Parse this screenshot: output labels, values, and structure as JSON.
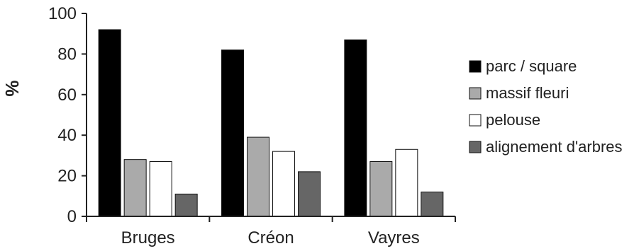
{
  "chart_data": {
    "type": "bar",
    "ylabel": "%",
    "xlabel": "",
    "ylim": [
      0,
      100
    ],
    "yticks": [
      0,
      20,
      40,
      60,
      80,
      100
    ],
    "grid": false,
    "legend_position": "right",
    "categories": [
      "Bruges",
      "Créon",
      "Vayres"
    ],
    "series": [
      {
        "name": "parc / square",
        "color": "#000000",
        "values": [
          92,
          82,
          87
        ]
      },
      {
        "name": "massif fleuri",
        "color": "#aaaaaa",
        "values": [
          28,
          39,
          27
        ]
      },
      {
        "name": "pelouse",
        "color": "#ffffff",
        "values": [
          27,
          32,
          33
        ]
      },
      {
        "name": "alignement d'arbres",
        "color": "#666666",
        "values": [
          11,
          22,
          12
        ]
      }
    ]
  }
}
